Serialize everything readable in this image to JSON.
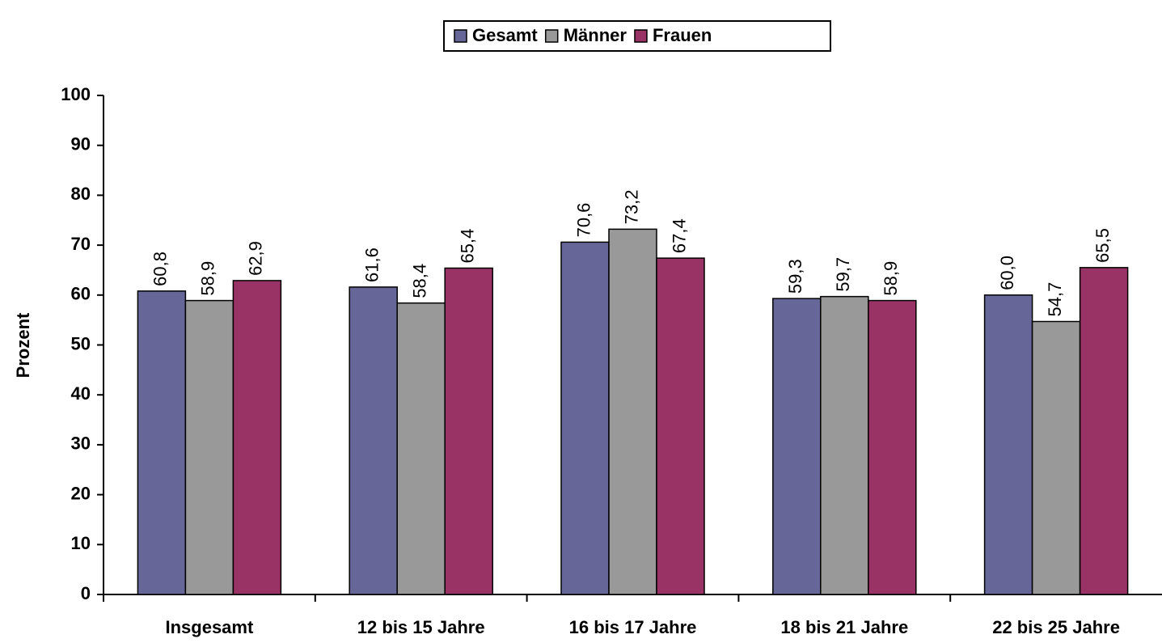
{
  "chart_data": {
    "type": "bar",
    "categories": [
      "Insgesamt",
      "12 bis 15 Jahre",
      "16 bis 17 Jahre",
      "18 bis 21 Jahre",
      "22 bis 25 Jahre"
    ],
    "series": [
      {
        "name": "Gesamt",
        "color": "#666699",
        "values": [
          60.8,
          61.6,
          70.6,
          59.3,
          60.0
        ],
        "value_labels": [
          "60,8",
          "61,6",
          "70,6",
          "59,3",
          "60,0"
        ]
      },
      {
        "name": "Männer",
        "color": "#999999",
        "values": [
          58.9,
          58.4,
          73.2,
          59.7,
          54.7
        ],
        "value_labels": [
          "58,9",
          "58,4",
          "73,2",
          "59,7",
          "54,7"
        ]
      },
      {
        "name": "Frauen",
        "color": "#993366",
        "values": [
          62.9,
          65.4,
          67.4,
          58.9,
          65.5
        ],
        "value_labels": [
          "62,9",
          "65,4",
          "67,4",
          "58,9",
          "65,5"
        ]
      }
    ],
    "ylabel": "Prozent",
    "ylim": [
      0,
      100
    ],
    "yticks": [
      0,
      10,
      20,
      30,
      40,
      50,
      60,
      70,
      80,
      90,
      100
    ],
    "legend": "top",
    "grid": false
  }
}
